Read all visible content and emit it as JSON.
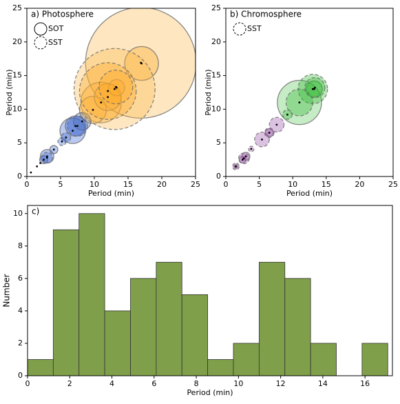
{
  "chart_data": [
    {
      "type": "bubble",
      "title": "a) Photosphere",
      "x_label": "Period (min)",
      "y_label": "Period (min)",
      "xlim": [
        0,
        25
      ],
      "ylim": [
        0,
        25
      ],
      "xticks": [
        0,
        5,
        10,
        15,
        20,
        25
      ],
      "yticks": [
        0,
        5,
        10,
        15,
        20,
        25
      ],
      "dots": {
        "x": [
          0.6,
          1.5,
          2.0
        ],
        "values": [
          0.6,
          1.5,
          2.0
        ]
      },
      "series": [
        {
          "name": "SOT",
          "linestyle": "solid",
          "x": [
            16.9,
            11.0,
            9.8,
            12.0,
            17.0,
            6.8,
            7.2,
            8.2,
            13.3,
            3.0,
            2.5,
            4.0
          ],
          "values": [
            16.9,
            11.0,
            9.9,
            11.8,
            16.8,
            6.8,
            7.5,
            8.2,
            13.2,
            3.0,
            2.5,
            4.0
          ],
          "sizes": [
            8.2,
            3.0,
            2.0,
            2.0,
            2.5,
            1.9,
            1.5,
            1.3,
            1.2,
            1.0,
            0.6,
            0.6
          ],
          "colors": [
            "#fdb94a",
            "#fda520",
            "#fda520",
            "#fda520",
            "#fda520",
            "#3a64d0",
            "#3a64d0",
            "#5a6fa8",
            "#fda520",
            "#3a64d0",
            "#3a64d0",
            "#3a64d0"
          ]
        },
        {
          "name": "SST",
          "linestyle": "dashed",
          "x": [
            13.0,
            12.0,
            13.2,
            7.5,
            3.0,
            5.8,
            5.2
          ],
          "values": [
            13.0,
            12.7,
            13.3,
            7.5,
            2.8,
            5.8,
            5.2
          ],
          "sizes": [
            6.0,
            4.2,
            2.5,
            1.5,
            0.8,
            0.7,
            0.6
          ],
          "colors": [
            "#fdb94a",
            "#fda520",
            "#fda520",
            "#3a64d0",
            "#3a64d0",
            "#3a64d0",
            "#3a64d0"
          ]
        }
      ]
    },
    {
      "type": "bubble",
      "title": "b) Chromosphere",
      "x_label": "Period (min)",
      "y_label": "Period (min)",
      "xlim": [
        0,
        25
      ],
      "ylim": [
        0,
        25
      ],
      "xticks": [
        0,
        5,
        10,
        15,
        20,
        25
      ],
      "yticks": [
        0,
        5,
        10,
        15,
        20,
        25
      ],
      "series": [
        {
          "linestyle": "solid",
          "x": [
            11.0,
            13.2,
            3.0,
            6.5,
            2.5,
            1.5
          ],
          "values": [
            11.0,
            13.0,
            3.0,
            6.5,
            2.5,
            1.5
          ],
          "sizes": [
            3.3,
            1.2,
            0.6,
            0.6,
            0.5,
            0.3
          ],
          "colors": [
            "#5cc85c",
            "#2eb82e",
            "#9b4fa8",
            "#9b4fa8",
            "#9b4fa8",
            "#9b4fa8"
          ]
        },
        {
          "name": "SST",
          "linestyle": "dashed",
          "x": [
            13.0,
            11.0,
            13.3,
            5.4,
            7.6,
            2.7,
            6.5,
            9.2,
            1.5,
            3.8
          ],
          "values": [
            13.0,
            11.0,
            13.2,
            5.5,
            7.7,
            2.7,
            6.5,
            9.2,
            1.5,
            4.1
          ],
          "sizes": [
            2.2,
            2.0,
            1.5,
            1.1,
            1.1,
            0.8,
            0.7,
            0.7,
            0.5,
            0.4
          ],
          "colors": [
            "#2eb82e",
            "#2eb82e",
            "#2eb82e",
            "#9b4fa8",
            "#9b4fa8",
            "#9b4fa8",
            "#9b4fa8",
            "#2eb82e",
            "#9b4fa8",
            "#9b4fa8"
          ]
        }
      ]
    },
    {
      "type": "histogram",
      "title": "c)",
      "x_label": "Period (min)",
      "y_label": "Number",
      "bins": [
        0,
        1.22,
        2.44,
        3.66,
        4.88,
        6.1,
        7.32,
        8.54,
        9.76,
        10.98,
        12.2,
        13.42,
        14.64,
        15.86,
        17.08
      ],
      "values": [
        1,
        9,
        10,
        4,
        6,
        7,
        5,
        1,
        2,
        7,
        6,
        2,
        0,
        2
      ],
      "color": "#7f9f4a",
      "xlim": [
        0,
        17.3
      ],
      "ylim": [
        0,
        10.5
      ],
      "xticks": [
        0,
        2,
        4,
        6,
        8,
        10,
        12,
        14,
        16
      ],
      "yticks": [
        0,
        2,
        4,
        6,
        8,
        10
      ]
    }
  ]
}
